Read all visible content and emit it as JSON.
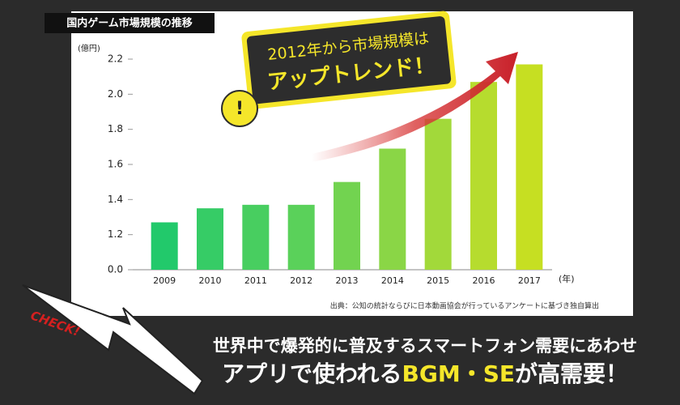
{
  "chart_data": {
    "type": "bar",
    "title": "国内ゲーム市場規模の推移",
    "y_unit": "(億円)",
    "x_unit": "(年)",
    "source": "出典：公知の統計ならびに日本動画協会が行っているアンケートに基づき独自算出",
    "categories": [
      "2009",
      "2010",
      "2011",
      "2012",
      "2013",
      "2014",
      "2015",
      "2016",
      "2017"
    ],
    "values": [
      1.27,
      1.35,
      1.37,
      1.37,
      1.5,
      1.69,
      1.86,
      2.07,
      2.17
    ],
    "colors": [
      "#22c96b",
      "#36cc66",
      "#48ce60",
      "#5ad15a",
      "#72d350",
      "#8ad646",
      "#a2d93a",
      "#b6dc2e",
      "#c6df22"
    ],
    "ylim": [
      0,
      2.2
    ],
    "yticks": [
      {
        "value": 0,
        "label": "0.0"
      },
      1.2,
      1.4,
      1.6,
      1.8,
      {
        "value": 2,
        "label": "2.0"
      },
      2.2
    ],
    "grid": false
  },
  "callout": {
    "line1": "2012年から市場規模は",
    "line2": "アップトレンド！",
    "icon": "!"
  },
  "banner": {
    "badge": "CHECK!",
    "line1": "世界中で爆発的に普及するスマートフォン需要にあわせ",
    "line2_start": "アプリで使われる",
    "line2_highlight": "BGM・SE",
    "line2_end": "が高需要！"
  }
}
